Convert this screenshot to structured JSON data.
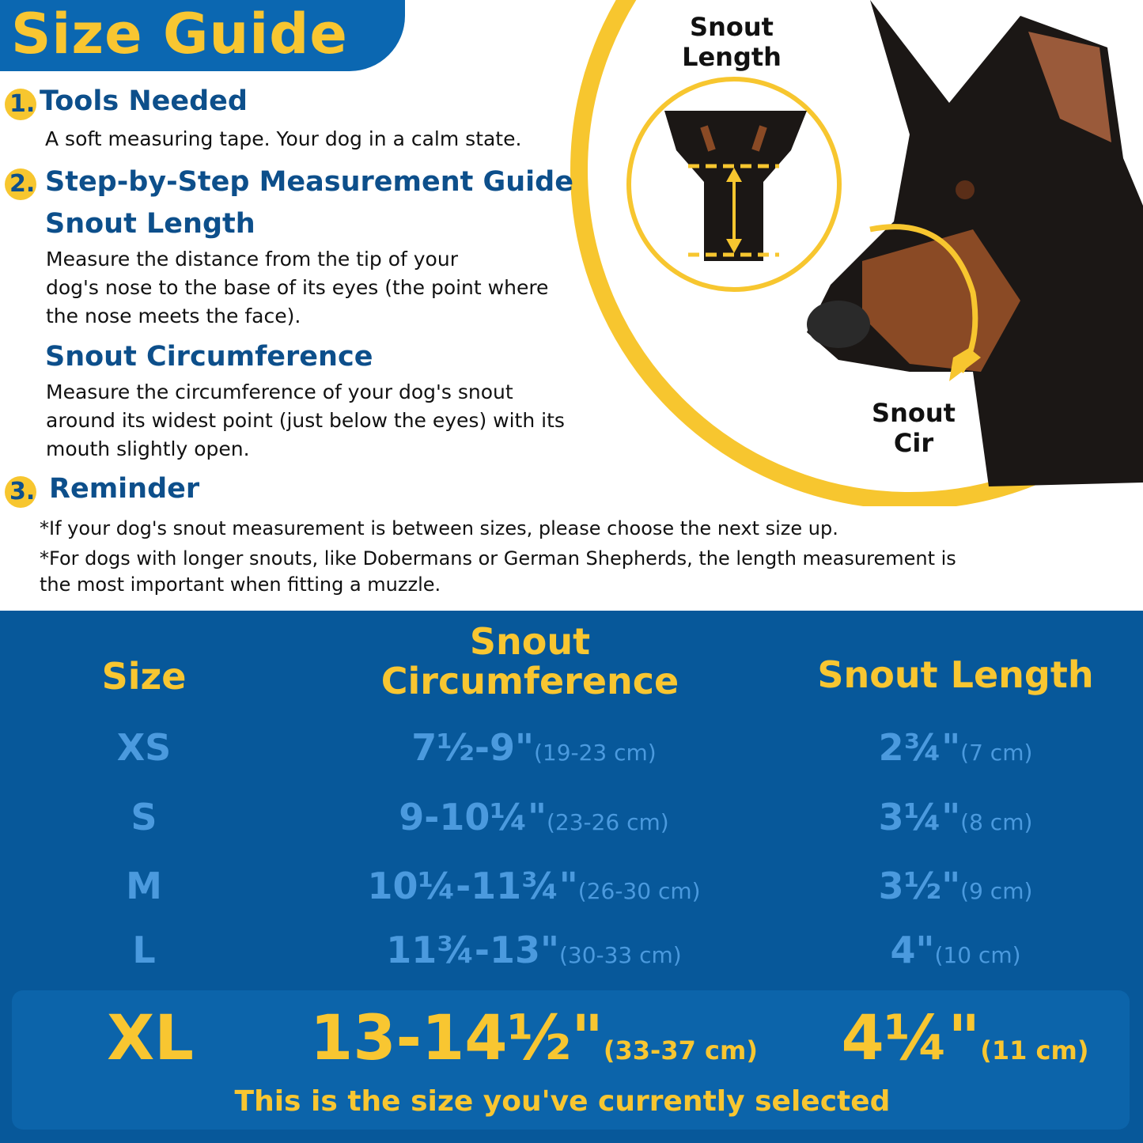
{
  "title": "Size Guide",
  "colors": {
    "brand_blue": "#0b67b1",
    "accent_yellow": "#f8c631",
    "heading_blue": "#0d4f8b",
    "table_bg": "#07589a",
    "row_text": "#4b9ade"
  },
  "sections": [
    {
      "number": "1.",
      "heading": "Tools Needed",
      "text": "A soft measuring tape. Your dog in a calm state."
    },
    {
      "number": "2.",
      "heading": "Step-by-Step Measurement Guide",
      "sub": [
        {
          "heading": "Snout Length",
          "lines": [
            "Measure the distance from the tip of your",
            "dog's nose to the base of its eyes (the point where",
            "the nose meets the face)."
          ]
        },
        {
          "heading": "Snout Circumference",
          "lines": [
            "Measure the circumference of your dog's snout",
            "around its widest point (just below the eyes) with its",
            "mouth slightly open."
          ]
        }
      ]
    },
    {
      "number": "3.",
      "heading": "Reminder",
      "lines": [
        "*If your dog's snout measurement is between sizes, please choose the next size up.",
        "*For dogs with longer snouts, like Dobermans or German Shepherds, the length measurement is",
        "the most important when fitting a muzzle."
      ]
    }
  ],
  "illustration": {
    "length_label_1": "Snout",
    "length_label_2": "Length",
    "cir_label_1": "Snout",
    "cir_label_2": "Cir"
  },
  "table": {
    "headers": {
      "size": "Size",
      "circ_1": "Snout",
      "circ_2": "Circumference",
      "length": "Snout Length"
    },
    "rows": [
      {
        "size": "XS",
        "circ": "7½-9\"",
        "circ_cm": "(19-23 cm)",
        "len": "2¾\"",
        "len_cm": "(7 cm)"
      },
      {
        "size": "S",
        "circ": "9-10¼\"",
        "circ_cm": "(23-26 cm)",
        "len": "3¼\"",
        "len_cm": "(8 cm)"
      },
      {
        "size": "M",
        "circ": "10¼-11¾\"",
        "circ_cm": "(26-30 cm)",
        "len": "3½\"",
        "len_cm": "(9 cm)"
      },
      {
        "size": "L",
        "circ": "11¾-13\"",
        "circ_cm": "(30-33 cm)",
        "len": "4\"",
        "len_cm": "(10 cm)"
      }
    ],
    "selected": {
      "size": "XL",
      "circ": "13-14½\"",
      "circ_cm": "(33-37 cm)",
      "len": "4¼\"",
      "len_cm": "(11 cm)",
      "note": "This is the size you've currently selected"
    }
  }
}
